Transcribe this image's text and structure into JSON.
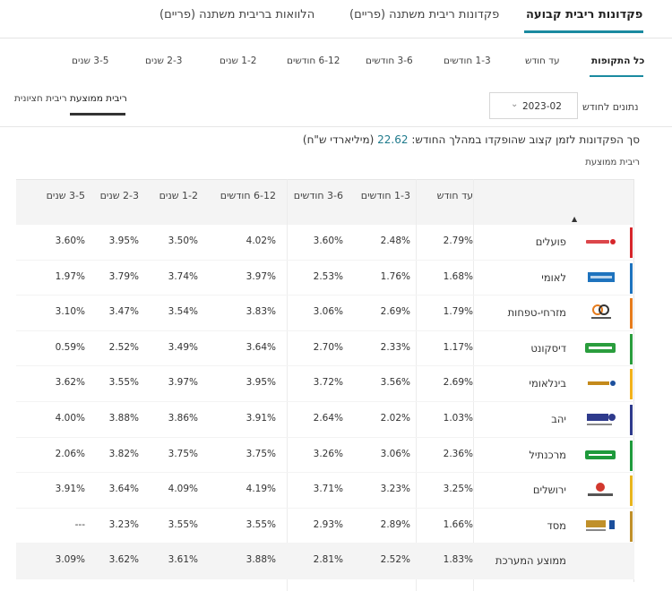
{
  "main_tabs": [
    {
      "label": "פקדונות ריבית קבועה",
      "active": true
    },
    {
      "label": "פקדונות ריבית משתנה (פריים)",
      "active": false
    },
    {
      "label": "הלוואות בריבית משתנה (פריים)",
      "active": false
    }
  ],
  "period_tabs": [
    {
      "label": "כל התקופות",
      "active": true
    },
    {
      "label": "עד חודש",
      "active": false
    },
    {
      "label": "1-3 חודשים",
      "active": false
    },
    {
      "label": "3-6 חודשים",
      "active": false
    },
    {
      "label": "6-12 חודשים",
      "active": false
    },
    {
      "label": "1-2 שנים",
      "active": false
    },
    {
      "label": "2-3 שנים",
      "active": false
    },
    {
      "label": "3-5 שנים",
      "active": false
    }
  ],
  "rate_toggle": [
    {
      "label": "ריבית ממוצעת",
      "active": true
    },
    {
      "label": "ריבית חציונית",
      "active": false
    }
  ],
  "month_selector": {
    "label": "נתונים לחודש",
    "value": "2023-02"
  },
  "summary": {
    "text": "סך הפקדונות לזמן קצוב שהופקדו במהלך החודש:",
    "amount": "22.62",
    "unit": "(מיליארדי ש\"ח)"
  },
  "table_label": "ריבית ממוצעת",
  "table": {
    "columns": [
      "עד חודש",
      "1-3 חודשים",
      "3-6 חודשים",
      "6-12 חודשים",
      "1-2 שנים",
      "2-3 שנים",
      "3-5 שנים"
    ],
    "rows": [
      {
        "bank": "פועלים",
        "logo": "poalim-logo",
        "color": "#d6262b",
        "values": [
          "2.79%",
          "2.48%",
          "3.60%",
          "4.02%",
          "3.50%",
          "3.95%",
          "3.60%"
        ]
      },
      {
        "bank": "לאומי",
        "logo": "leumi-logo",
        "color": "#1e73be",
        "values": [
          "1.68%",
          "1.76%",
          "2.53%",
          "3.97%",
          "3.74%",
          "3.79%",
          "1.97%"
        ]
      },
      {
        "bank": "מזרחי-טפחות",
        "logo": "mizrahi-logo",
        "color": "#e67c1d",
        "values": [
          "1.79%",
          "2.69%",
          "3.06%",
          "3.83%",
          "3.54%",
          "3.47%",
          "3.10%"
        ]
      },
      {
        "bank": "דיסקונט",
        "logo": "discount-logo",
        "color": "#2a9d3d",
        "values": [
          "1.17%",
          "2.33%",
          "2.70%",
          "3.64%",
          "3.49%",
          "2.52%",
          "0.59%"
        ]
      },
      {
        "bank": "בינלאומי",
        "logo": "beinleumi-logo",
        "color": "#f2b21c",
        "values": [
          "2.69%",
          "3.56%",
          "3.72%",
          "3.95%",
          "3.97%",
          "3.55%",
          "3.62%"
        ]
      },
      {
        "bank": "יהב",
        "logo": "yahav-logo",
        "color": "#2e3a8c",
        "values": [
          "1.03%",
          "2.02%",
          "2.64%",
          "3.91%",
          "3.86%",
          "3.88%",
          "4.00%"
        ]
      },
      {
        "bank": "מרכנתיל",
        "logo": "mercantile-logo",
        "color": "#1f9a3c",
        "values": [
          "2.36%",
          "3.06%",
          "3.26%",
          "3.75%",
          "3.75%",
          "3.82%",
          "2.06%"
        ]
      },
      {
        "bank": "ירושלים",
        "logo": "jerusalem-logo",
        "color": "#e8b51e",
        "values": [
          "3.25%",
          "3.23%",
          "3.71%",
          "4.19%",
          "4.09%",
          "3.64%",
          "3.91%"
        ]
      },
      {
        "bank": "מסד",
        "logo": "massad-logo",
        "color": "#c0902a",
        "values": [
          "1.66%",
          "2.89%",
          "2.93%",
          "3.55%",
          "3.55%",
          "3.23%",
          "---"
        ]
      }
    ],
    "average_row": {
      "label": "ממוצע המערכת",
      "values": [
        "1.83%",
        "2.52%",
        "2.81%",
        "3.88%",
        "3.61%",
        "3.62%",
        "3.09%"
      ]
    }
  }
}
